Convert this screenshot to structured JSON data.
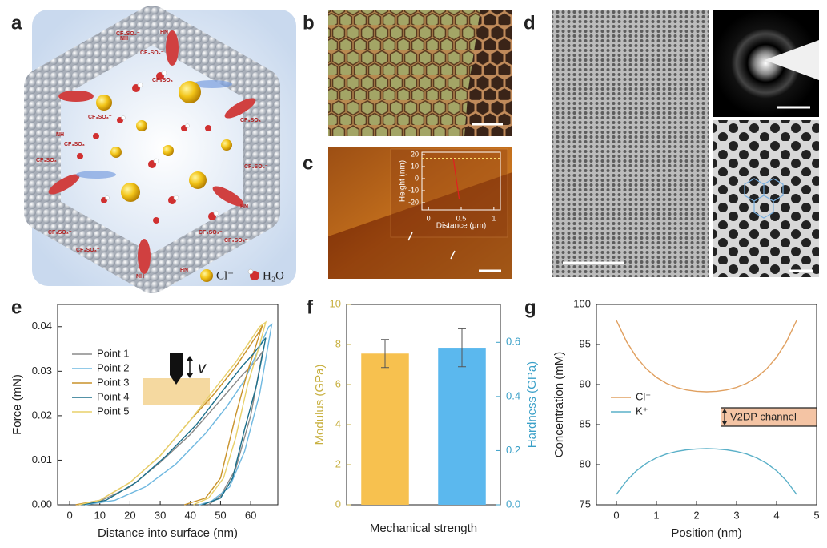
{
  "panels": [
    "a",
    "b",
    "c",
    "d",
    "e",
    "f",
    "g"
  ],
  "illustration": {
    "labels": [
      "CF₃SO₃⁻",
      "CF₃SO₃⁻",
      "CF₃SO₃⁻",
      "CF₃SO₃⁻",
      "CF₃SO₃⁻",
      "CF₃SO₃⁻",
      "CF₃SO₃⁻",
      "CF₃SO₃⁻",
      "CF₃SO₃⁻",
      "CF₃SO₃⁻",
      "CF₃SO₃⁻",
      "CF₃SO₃⁻",
      "NH",
      "HN",
      "NH",
      "HN",
      "NH",
      "HN"
    ],
    "legend": [
      "Cl⁻",
      "H₂O"
    ]
  },
  "chart_data": [
    {
      "type": "line",
      "xlabel": "Distance (μm)",
      "ylabel": "Height (nm)",
      "xlim": [
        -0.1,
        1.1
      ],
      "ylim": [
        -26,
        22
      ],
      "xticks": [
        0,
        0.5,
        1
      ],
      "yticks": [
        -20,
        -10,
        0,
        10,
        20
      ],
      "reference_lines": [
        17,
        -17
      ],
      "reference_color": "#ffe070",
      "series": [
        {
          "color": "#e02020",
          "x": [
            0.38,
            0.47
          ],
          "values": [
            17,
            -17
          ]
        }
      ]
    },
    {
      "type": "line",
      "xlabel": "Distance into surface (nm)",
      "ylabel": "Force (mN)",
      "xlim": [
        -4,
        69
      ],
      "ylim": [
        0,
        0.045
      ],
      "xticks": [
        0,
        10,
        20,
        30,
        40,
        50,
        60
      ],
      "yticks": [
        {
          "value": 0,
          "label": "0.00"
        },
        {
          "value": 0.01,
          "label": "0.01"
        },
        {
          "value": 0.02,
          "label": "0.02"
        },
        {
          "value": 0.03,
          "label": "0.03"
        },
        {
          "value": 0.04,
          "label": "0.04"
        }
      ],
      "legend": "upper left",
      "annotation": "v",
      "series": [
        {
          "name": "Point 1",
          "color": "#8a8a8a",
          "x": [
            3,
            10,
            20,
            30,
            40,
            50,
            57,
            62,
            64,
            60,
            55,
            50,
            46
          ],
          "values": [
            0,
            0.0008,
            0.004,
            0.0095,
            0.0158,
            0.0235,
            0.029,
            0.0325,
            0.0345,
            0.02,
            0.008,
            0.002,
            0
          ]
        },
        {
          "name": "Point 2",
          "color": "#6fb8e0",
          "x": [
            5,
            15,
            25,
            35,
            45,
            52,
            58,
            62,
            66,
            67,
            63,
            58,
            53,
            47,
            43
          ],
          "values": [
            0,
            0.001,
            0.004,
            0.009,
            0.016,
            0.022,
            0.028,
            0.034,
            0.04,
            0.0405,
            0.025,
            0.012,
            0.004,
            0.0008,
            0
          ]
        },
        {
          "name": "Point 3",
          "color": "#c8922a",
          "x": [
            2,
            10,
            20,
            30,
            40,
            48,
            55,
            60,
            63,
            64,
            59,
            55,
            50,
            45,
            38
          ],
          "values": [
            0,
            0.001,
            0.005,
            0.011,
            0.019,
            0.025,
            0.031,
            0.036,
            0.039,
            0.0405,
            0.03,
            0.02,
            0.006,
            0.0015,
            0
          ]
        },
        {
          "name": "Point 4",
          "color": "#1a6e8a",
          "x": [
            4,
            12,
            22,
            32,
            42,
            50,
            57,
            61,
            65,
            62,
            58,
            54,
            50,
            44
          ],
          "values": [
            0,
            0.001,
            0.005,
            0.011,
            0.018,
            0.025,
            0.031,
            0.034,
            0.0375,
            0.027,
            0.017,
            0.006,
            0.0015,
            0
          ]
        },
        {
          "name": "Point 5",
          "color": "#e8d06a",
          "x": [
            3,
            10,
            20,
            30,
            40,
            48,
            55,
            60,
            63,
            65,
            63,
            59,
            55,
            51,
            46,
            41
          ],
          "values": [
            0,
            0.001,
            0.005,
            0.011,
            0.019,
            0.026,
            0.032,
            0.037,
            0.04,
            0.041,
            0.036,
            0.027,
            0.015,
            0.006,
            0.0015,
            0
          ]
        }
      ]
    },
    {
      "type": "bar",
      "xlabel": "Mechanical strength",
      "ylabel": "Modulus (GPa)",
      "y2label": "Hardness (GPa)",
      "categories": [
        null,
        null
      ],
      "ylim": [
        0,
        10
      ],
      "yticks": [
        0,
        2,
        4,
        6,
        8,
        10
      ],
      "y2lim": [
        0,
        0.74
      ],
      "y2ticks": [
        {
          "value": 0,
          "label": "0.0"
        },
        {
          "value": 0.2,
          "label": "0.2"
        },
        {
          "value": 0.4,
          "label": "0.4"
        },
        {
          "value": 0.6,
          "label": "0.6"
        }
      ],
      "series": [
        {
          "color": "#f7c14f",
          "label_color": "#c8b040",
          "values": [
            7.55,
            null
          ],
          "errors": [
            0.7,
            null
          ]
        },
        {
          "color": "#5bb8ee",
          "label_color": "#3aa0c8",
          "axis": "y2",
          "values": [
            null,
            0.58
          ],
          "errors": [
            null,
            0.07
          ]
        }
      ]
    },
    {
      "type": "line",
      "xlabel": "Position (nm)",
      "ylabel": "Concentration (mM)",
      "xlim": [
        -0.5,
        5
      ],
      "ylim": [
        75,
        100
      ],
      "xticks": [
        0,
        1,
        2,
        3,
        4,
        5
      ],
      "yticks": [
        75,
        80,
        85,
        90,
        95,
        100
      ],
      "x": [
        0,
        0.25,
        0.5,
        0.75,
        1,
        1.25,
        1.5,
        1.75,
        2,
        2.25,
        2.5,
        2.75,
        3,
        3.25,
        3.5,
        3.75,
        4,
        4.25,
        4.5
      ],
      "legend": "center left",
      "annotation": "V2DP channel",
      "series": [
        {
          "name": "Cl⁻",
          "color": "#e0a060",
          "values": [
            98,
            95.39,
            93.42,
            91.96,
            90.9,
            90.15,
            89.65,
            89.33,
            89.16,
            89.1,
            89.16,
            89.33,
            89.65,
            90.15,
            90.9,
            91.96,
            93.42,
            95.39,
            98
          ]
        },
        {
          "name": "K⁺",
          "color": "#5ab0c8",
          "values": [
            76.3,
            77.97,
            79.23,
            80.17,
            80.85,
            81.33,
            81.65,
            81.85,
            81.96,
            82,
            81.96,
            81.85,
            81.65,
            81.33,
            80.85,
            80.17,
            79.23,
            77.97,
            76.3
          ]
        }
      ]
    }
  ]
}
